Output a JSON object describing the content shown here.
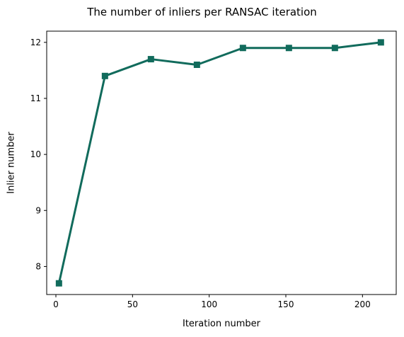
{
  "chart_data": {
    "type": "line",
    "title": "The number of inliers per RANSAC iteration",
    "xlabel": "Iteration number",
    "ylabel": "Inlier number",
    "xlim": [
      -6,
      222
    ],
    "ylim": [
      7.5,
      12.2
    ],
    "xticks": [
      0,
      50,
      100,
      150,
      200
    ],
    "yticks": [
      8,
      9,
      10,
      11,
      12
    ],
    "grid": false,
    "series": [
      {
        "color": "#116b5c",
        "marker": "square",
        "x": [
          2,
          32,
          62,
          92,
          122,
          152,
          182,
          212
        ],
        "y": [
          7.7,
          11.4,
          11.7,
          11.6,
          11.9,
          11.9,
          11.9,
          12.0
        ]
      }
    ]
  }
}
